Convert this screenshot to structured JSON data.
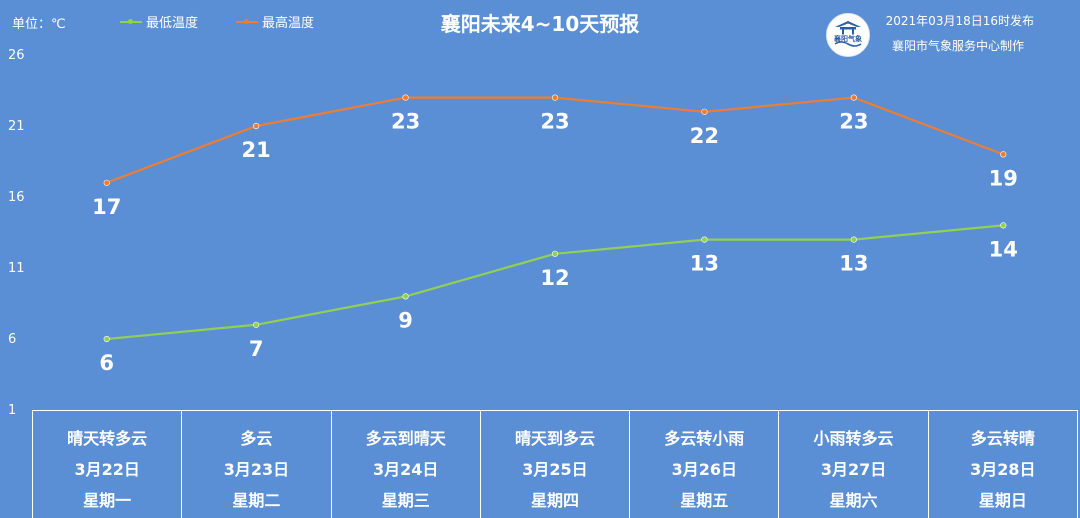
{
  "header": {
    "unit": "单位：℃",
    "title": "襄阳未来4~10天预报",
    "issued": "2021年03月18日16时发布",
    "maker": "襄阳市气象服务中心制作",
    "logo_text": "襄阳气象"
  },
  "chart_data": {
    "type": "line",
    "title": "襄阳未来4~10天预报",
    "categories": [
      "3月22日",
      "3月23日",
      "3月24日",
      "3月25日",
      "3月26日",
      "3月27日",
      "3月28日"
    ],
    "series": [
      {
        "name": "最低温度",
        "color": "#92d050",
        "values": [
          6,
          7,
          9,
          12,
          13,
          13,
          14
        ]
      },
      {
        "name": "最高温度",
        "color": "#ed7d31",
        "values": [
          17,
          21,
          23,
          23,
          22,
          23,
          19
        ]
      }
    ],
    "ylim": [
      1,
      26
    ],
    "yticks": [
      1,
      6,
      11,
      16,
      21,
      26
    ],
    "ylabel": "单位：℃",
    "grid": false,
    "legend": "top-left"
  },
  "forecast": [
    {
      "weather": "晴天转多云",
      "date": "3月22日",
      "weekday": "星期一"
    },
    {
      "weather": "多云",
      "date": "3月23日",
      "weekday": "星期二"
    },
    {
      "weather": "多云到晴天",
      "date": "3月24日",
      "weekday": "星期三"
    },
    {
      "weather": "晴天到多云",
      "date": "3月25日",
      "weekday": "星期四"
    },
    {
      "weather": "多云转小雨",
      "date": "3月26日",
      "weekday": "星期五"
    },
    {
      "weather": "小雨转多云",
      "date": "3月27日",
      "weekday": "星期六"
    },
    {
      "weather": "多云转晴",
      "date": "3月28日",
      "weekday": "星期日"
    }
  ]
}
